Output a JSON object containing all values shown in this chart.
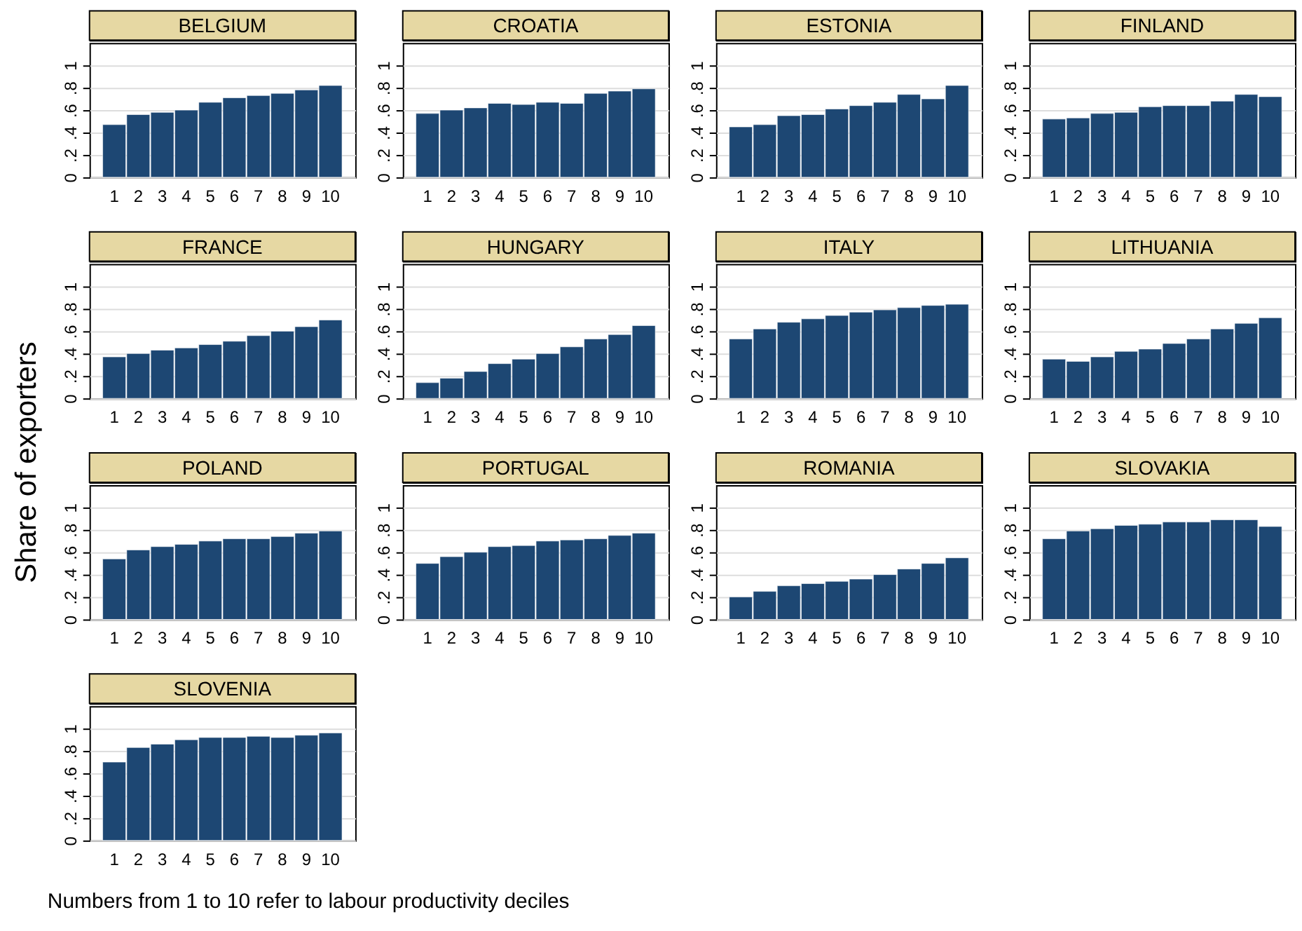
{
  "chart_data": [
    {
      "type": "bar",
      "title": "BELGIUM",
      "ylabel": "Share of exporters",
      "categories": [
        "1",
        "2",
        "3",
        "4",
        "5",
        "6",
        "7",
        "8",
        "9",
        "10"
      ],
      "values": [
        0.47,
        0.56,
        0.58,
        0.6,
        0.67,
        0.71,
        0.73,
        0.75,
        0.78,
        0.82
      ],
      "color": "#1d4773",
      "ylim": [
        0,
        1.2
      ],
      "yticks": [
        0,
        {
          "value": 0.2,
          "label": ".2"
        },
        {
          "value": 0.4,
          "label": ".4"
        },
        {
          "value": 0.6,
          "label": ".6"
        },
        {
          "value": 0.8,
          "label": ".8"
        },
        1
      ],
      "grid": "y"
    },
    {
      "type": "bar",
      "title": "CROATIA",
      "categories": [
        "1",
        "2",
        "3",
        "4",
        "5",
        "6",
        "7",
        "8",
        "9",
        "10"
      ],
      "values": [
        0.57,
        0.6,
        0.62,
        0.66,
        0.65,
        0.67,
        0.66,
        0.75,
        0.77,
        0.79
      ],
      "color": "#1d4773",
      "ylim": [
        0,
        1.2
      ],
      "yticks": [
        0,
        {
          "value": 0.2,
          "label": ".2"
        },
        {
          "value": 0.4,
          "label": ".4"
        },
        {
          "value": 0.6,
          "label": ".6"
        },
        {
          "value": 0.8,
          "label": ".8"
        },
        1
      ],
      "grid": "y"
    },
    {
      "type": "bar",
      "title": "ESTONIA",
      "categories": [
        "1",
        "2",
        "3",
        "4",
        "5",
        "6",
        "7",
        "8",
        "9",
        "10"
      ],
      "values": [
        0.45,
        0.47,
        0.55,
        0.56,
        0.61,
        0.64,
        0.67,
        0.74,
        0.7,
        0.82
      ],
      "color": "#1d4773",
      "ylim": [
        0,
        1.2
      ],
      "yticks": [
        0,
        {
          "value": 0.2,
          "label": ".2"
        },
        {
          "value": 0.4,
          "label": ".4"
        },
        {
          "value": 0.6,
          "label": ".6"
        },
        {
          "value": 0.8,
          "label": ".8"
        },
        1
      ],
      "grid": "y"
    },
    {
      "type": "bar",
      "title": "FINLAND",
      "categories": [
        "1",
        "2",
        "3",
        "4",
        "5",
        "6",
        "7",
        "8",
        "9",
        "10"
      ],
      "values": [
        0.52,
        0.53,
        0.57,
        0.58,
        0.63,
        0.64,
        0.64,
        0.68,
        0.74,
        0.72
      ],
      "color": "#1d4773",
      "ylim": [
        0,
        1.2
      ],
      "yticks": [
        0,
        {
          "value": 0.2,
          "label": ".2"
        },
        {
          "value": 0.4,
          "label": ".4"
        },
        {
          "value": 0.6,
          "label": ".6"
        },
        {
          "value": 0.8,
          "label": ".8"
        },
        1
      ],
      "grid": "y"
    },
    {
      "type": "bar",
      "title": "FRANCE",
      "categories": [
        "1",
        "2",
        "3",
        "4",
        "5",
        "6",
        "7",
        "8",
        "9",
        "10"
      ],
      "values": [
        0.37,
        0.4,
        0.43,
        0.45,
        0.48,
        0.51,
        0.56,
        0.6,
        0.64,
        0.7
      ],
      "color": "#1d4773",
      "ylim": [
        0,
        1.2
      ],
      "yticks": [
        0,
        {
          "value": 0.2,
          "label": ".2"
        },
        {
          "value": 0.4,
          "label": ".4"
        },
        {
          "value": 0.6,
          "label": ".6"
        },
        {
          "value": 0.8,
          "label": ".8"
        },
        1
      ],
      "grid": "y"
    },
    {
      "type": "bar",
      "title": "HUNGARY",
      "categories": [
        "1",
        "2",
        "3",
        "4",
        "5",
        "6",
        "7",
        "8",
        "9",
        "10"
      ],
      "values": [
        0.14,
        0.18,
        0.24,
        0.31,
        0.35,
        0.4,
        0.46,
        0.53,
        0.57,
        0.65
      ],
      "color": "#1d4773",
      "ylim": [
        0,
        1.2
      ],
      "yticks": [
        0,
        {
          "value": 0.2,
          "label": ".2"
        },
        {
          "value": 0.4,
          "label": ".4"
        },
        {
          "value": 0.6,
          "label": ".6"
        },
        {
          "value": 0.8,
          "label": ".8"
        },
        1
      ],
      "grid": "y"
    },
    {
      "type": "bar",
      "title": "ITALY",
      "categories": [
        "1",
        "2",
        "3",
        "4",
        "5",
        "6",
        "7",
        "8",
        "9",
        "10"
      ],
      "values": [
        0.53,
        0.62,
        0.68,
        0.71,
        0.74,
        0.77,
        0.79,
        0.81,
        0.83,
        0.84
      ],
      "color": "#1d4773",
      "ylim": [
        0,
        1.2
      ],
      "yticks": [
        0,
        {
          "value": 0.2,
          "label": ".2"
        },
        {
          "value": 0.4,
          "label": ".4"
        },
        {
          "value": 0.6,
          "label": ".6"
        },
        {
          "value": 0.8,
          "label": ".8"
        },
        1
      ],
      "grid": "y"
    },
    {
      "type": "bar",
      "title": "LITHUANIA",
      "categories": [
        "1",
        "2",
        "3",
        "4",
        "5",
        "6",
        "7",
        "8",
        "9",
        "10"
      ],
      "values": [
        0.35,
        0.33,
        0.37,
        0.42,
        0.44,
        0.49,
        0.53,
        0.62,
        0.67,
        0.72
      ],
      "color": "#1d4773",
      "ylim": [
        0,
        1.2
      ],
      "yticks": [
        0,
        {
          "value": 0.2,
          "label": ".2"
        },
        {
          "value": 0.4,
          "label": ".4"
        },
        {
          "value": 0.6,
          "label": ".6"
        },
        {
          "value": 0.8,
          "label": ".8"
        },
        1
      ],
      "grid": "y"
    },
    {
      "type": "bar",
      "title": "POLAND",
      "categories": [
        "1",
        "2",
        "3",
        "4",
        "5",
        "6",
        "7",
        "8",
        "9",
        "10"
      ],
      "values": [
        0.54,
        0.62,
        0.65,
        0.67,
        0.7,
        0.72,
        0.72,
        0.74,
        0.77,
        0.79
      ],
      "color": "#1d4773",
      "ylim": [
        0,
        1.2
      ],
      "yticks": [
        0,
        {
          "value": 0.2,
          "label": ".2"
        },
        {
          "value": 0.4,
          "label": ".4"
        },
        {
          "value": 0.6,
          "label": ".6"
        },
        {
          "value": 0.8,
          "label": ".8"
        },
        1
      ],
      "grid": "y"
    },
    {
      "type": "bar",
      "title": "PORTUGAL",
      "categories": [
        "1",
        "2",
        "3",
        "4",
        "5",
        "6",
        "7",
        "8",
        "9",
        "10"
      ],
      "values": [
        0.5,
        0.56,
        0.6,
        0.65,
        0.66,
        0.7,
        0.71,
        0.72,
        0.75,
        0.77
      ],
      "color": "#1d4773",
      "ylim": [
        0,
        1.2
      ],
      "yticks": [
        0,
        {
          "value": 0.2,
          "label": ".2"
        },
        {
          "value": 0.4,
          "label": ".4"
        },
        {
          "value": 0.6,
          "label": ".6"
        },
        {
          "value": 0.8,
          "label": ".8"
        },
        1
      ],
      "grid": "y"
    },
    {
      "type": "bar",
      "title": "ROMANIA",
      "categories": [
        "1",
        "2",
        "3",
        "4",
        "5",
        "6",
        "7",
        "8",
        "9",
        "10"
      ],
      "values": [
        0.2,
        0.25,
        0.3,
        0.32,
        0.34,
        0.36,
        0.4,
        0.45,
        0.5,
        0.55
      ],
      "color": "#1d4773",
      "ylim": [
        0,
        1.2
      ],
      "yticks": [
        0,
        {
          "value": 0.2,
          "label": ".2"
        },
        {
          "value": 0.4,
          "label": ".4"
        },
        {
          "value": 0.6,
          "label": ".6"
        },
        {
          "value": 0.8,
          "label": ".8"
        },
        1
      ],
      "grid": "y"
    },
    {
      "type": "bar",
      "title": "SLOVAKIA",
      "categories": [
        "1",
        "2",
        "3",
        "4",
        "5",
        "6",
        "7",
        "8",
        "9",
        "10"
      ],
      "values": [
        0.72,
        0.79,
        0.81,
        0.84,
        0.85,
        0.87,
        0.87,
        0.89,
        0.89,
        0.83
      ],
      "color": "#1d4773",
      "ylim": [
        0,
        1.2
      ],
      "yticks": [
        0,
        {
          "value": 0.2,
          "label": ".2"
        },
        {
          "value": 0.4,
          "label": ".4"
        },
        {
          "value": 0.6,
          "label": ".6"
        },
        {
          "value": 0.8,
          "label": ".8"
        },
        1
      ],
      "grid": "y"
    },
    {
      "type": "bar",
      "title": "SLOVENIA",
      "categories": [
        "1",
        "2",
        "3",
        "4",
        "5",
        "6",
        "7",
        "8",
        "9",
        "10"
      ],
      "values": [
        0.7,
        0.83,
        0.86,
        0.9,
        0.92,
        0.92,
        0.93,
        0.92,
        0.94,
        0.96
      ],
      "color": "#1d4773",
      "ylim": [
        0,
        1.2
      ],
      "yticks": [
        0,
        {
          "value": 0.2,
          "label": ".2"
        },
        {
          "value": 0.4,
          "label": ".4"
        },
        {
          "value": 0.6,
          "label": ".6"
        },
        {
          "value": 0.8,
          "label": ".8"
        },
        1
      ],
      "grid": "y",
      "annotations": [
        "Numbers from 1 to 10 refer to labour productivity deciles"
      ]
    }
  ]
}
